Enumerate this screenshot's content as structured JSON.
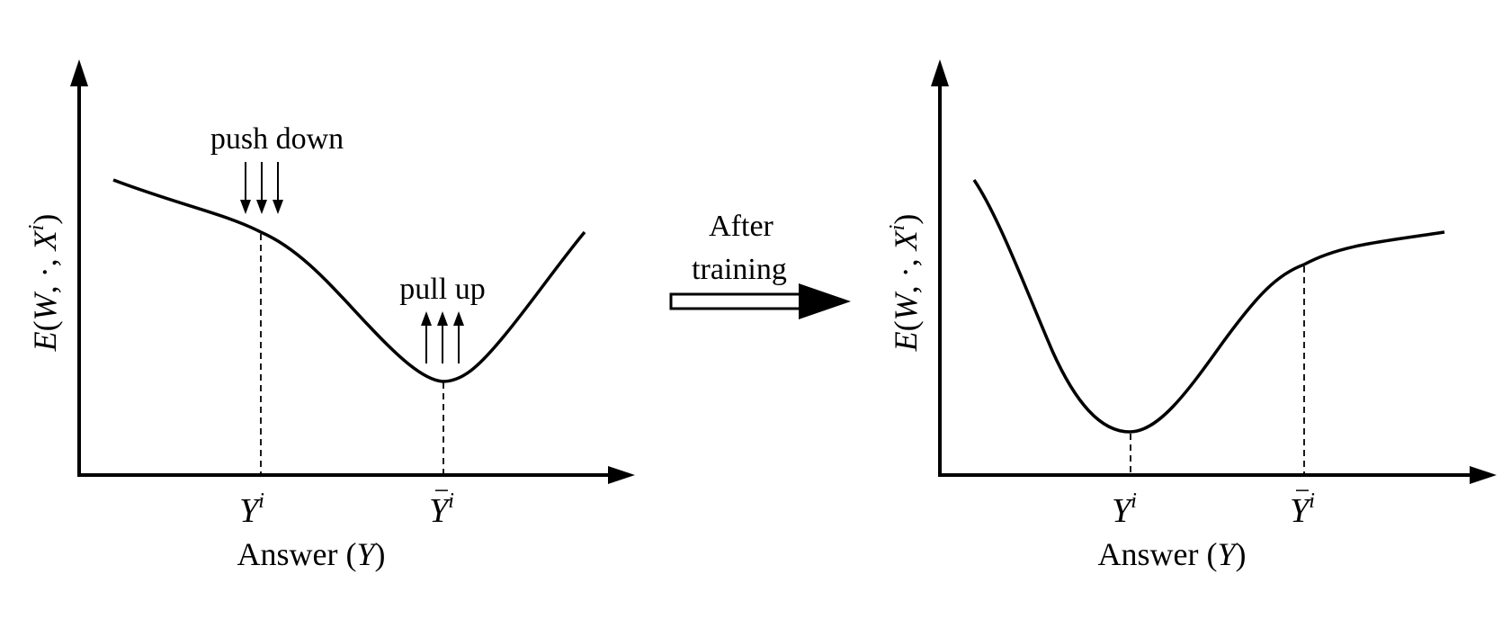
{
  "left_panel": {
    "y_axis_label": {
      "e": "E",
      "open": "(",
      "w": "W",
      "dot": ", ·, ",
      "x": "X",
      "sup": "i",
      "close": ")"
    },
    "tick_true": {
      "base": "Y",
      "sup": "i"
    },
    "tick_wrong": {
      "base": "Y",
      "sup": "i",
      "bar": "−"
    },
    "x_axis_label": {
      "word": "Answer ",
      "open": "(",
      "var": "Y",
      "close": ")"
    },
    "push_label": "push down",
    "pull_label": "pull up"
  },
  "transition": {
    "line1": "After",
    "line2": "training"
  },
  "right_panel": {
    "y_axis_label": {
      "e": "E",
      "open": "(",
      "w": "W",
      "dot": ", ·, ",
      "x": "X",
      "sup": "i",
      "close": ")"
    },
    "tick_true": {
      "base": "Y",
      "sup": "i"
    },
    "tick_wrong": {
      "base": "Y",
      "sup": "i",
      "bar": "−"
    },
    "x_axis_label": {
      "word": "Answer ",
      "open": "(",
      "var": "Y",
      "close": ")"
    }
  }
}
